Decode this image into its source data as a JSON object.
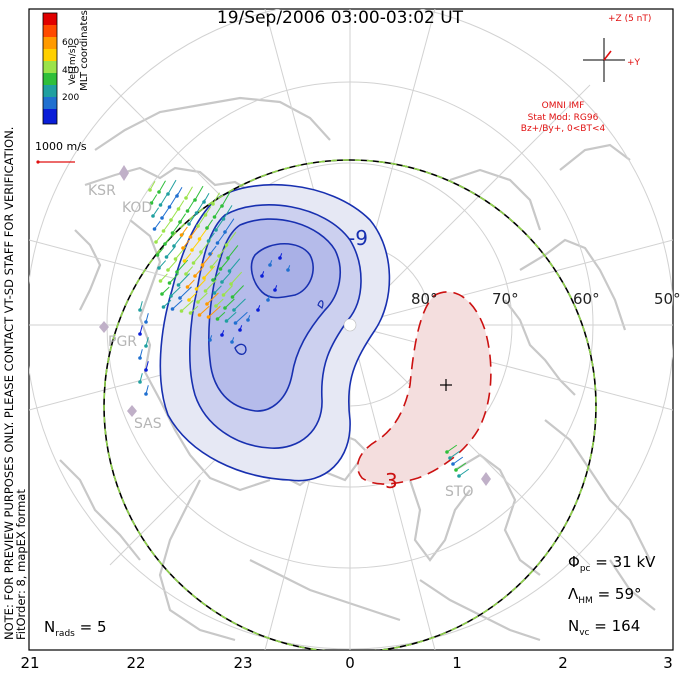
{
  "title": "19/Sep/2006 03:00-03:02 UT",
  "side_note": [
    "NOTE: FOR PREVIEW PURPOSES ONLY. PLEASE CONTACT VT-SD STAFF FOR VERIFICATION.",
    "FitOrder: 8, mapEX format"
  ],
  "colorbar": {
    "label": "Vel [m/s]",
    "coord_label": "MLT coordinates",
    "ticks": [
      "600",
      "400",
      "200"
    ],
    "colors": [
      "#e00000",
      "#ff4a00",
      "#ff9a00",
      "#ffd000",
      "#9be34a",
      "#2fbf3a",
      "#20a0a0",
      "#2070d0",
      "#0a1ed8"
    ]
  },
  "vector_scale": "1000 m/s",
  "imf": {
    "z_label": "+Z (5 nT)",
    "y_label": "+Y",
    "source": "OMNI IMF",
    "stat_mod": "Stat Mod: RG96",
    "condition": "Bz+/By+, 0<BT<4"
  },
  "stations": [
    "KSR",
    "KOD",
    "PGR",
    "SAS",
    "STO"
  ],
  "latitude_labels": [
    "80°",
    "70°",
    "60°",
    "50°"
  ],
  "contour_labels": {
    "negative": "-9",
    "positive": "3"
  },
  "stats": {
    "phi_pc_label": "Φ",
    "phi_pc_sub": "pc",
    "phi_pc_value": "= 31 kV",
    "lambda_label": "Λ",
    "lambda_sub": "HM",
    "lambda_value": "= 59°",
    "nvc_label": "N",
    "nvc_sub": "vc",
    "nvc_value": "= 164",
    "nrads_label": "N",
    "nrads_sub": "rads",
    "nrads_value": "= 5"
  },
  "mlt_ticks": [
    "21",
    "22",
    "23",
    "0",
    "1",
    "2",
    "3"
  ]
}
